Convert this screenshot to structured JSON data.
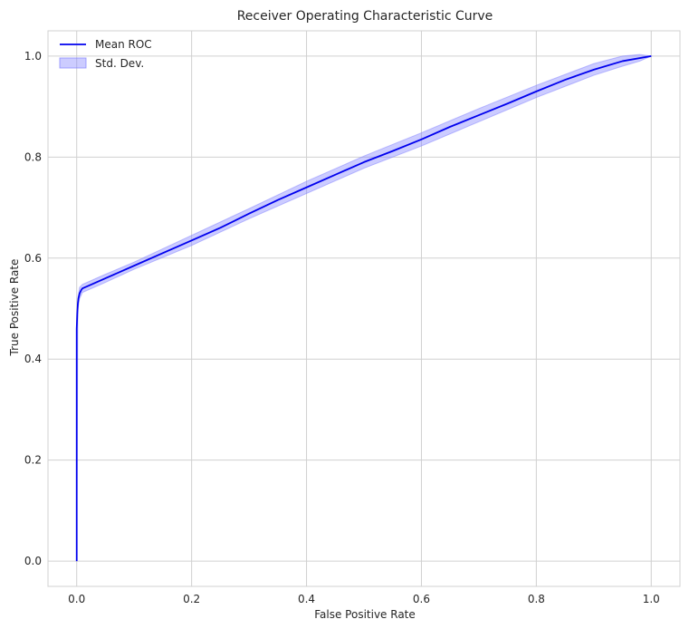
{
  "chart_data": {
    "type": "line",
    "title": "Receiver Operating Characteristic Curve",
    "xlabel": "False Positive Rate",
    "ylabel": "True Positive Rate",
    "xlim": [
      -0.05,
      1.05
    ],
    "ylim": [
      -0.05,
      1.05
    ],
    "xticks": [
      0.0,
      0.2,
      0.4,
      0.6,
      0.8,
      1.0
    ],
    "xtick_labels": [
      "0.0",
      "0.2",
      "0.4",
      "0.6",
      "0.8",
      "1.0"
    ],
    "yticks": [
      0.0,
      0.2,
      0.4,
      0.6,
      0.8,
      1.0
    ],
    "ytick_labels": [
      "0.0",
      "0.2",
      "0.4",
      "0.6",
      "0.8",
      "1.0"
    ],
    "grid": true,
    "legend": {
      "location": "top-left",
      "entries": [
        {
          "label": "Mean ROC",
          "kind": "line"
        },
        {
          "label": "Std. Dev.",
          "kind": "band"
        }
      ]
    },
    "colors": {
      "line": "#0000ee",
      "band_fill": "#8080ff",
      "grid": "#d0d0d0",
      "spine": "#d0d0d0"
    },
    "series": [
      {
        "name": "Mean ROC",
        "x": [
          0.0,
          0.0,
          0.001,
          0.002,
          0.003,
          0.005,
          0.008,
          0.01,
          0.02,
          0.05,
          0.1,
          0.15,
          0.2,
          0.25,
          0.3,
          0.35,
          0.4,
          0.45,
          0.5,
          0.55,
          0.6,
          0.65,
          0.7,
          0.75,
          0.8,
          0.85,
          0.9,
          0.95,
          1.0
        ],
        "y": [
          0.0,
          0.46,
          0.49,
          0.51,
          0.52,
          0.53,
          0.537,
          0.54,
          0.545,
          0.56,
          0.585,
          0.61,
          0.635,
          0.66,
          0.688,
          0.715,
          0.74,
          0.765,
          0.79,
          0.812,
          0.835,
          0.86,
          0.883,
          0.906,
          0.93,
          0.953,
          0.973,
          0.99,
          1.0
        ]
      }
    ],
    "band": {
      "name": "Std. Dev.",
      "x": [
        0.0,
        0.002,
        0.005,
        0.01,
        0.05,
        0.1,
        0.2,
        0.3,
        0.4,
        0.5,
        0.6,
        0.7,
        0.8,
        0.9,
        0.95,
        0.98,
        1.0
      ],
      "lower": [
        0.0,
        0.5,
        0.52,
        0.532,
        0.552,
        0.578,
        0.625,
        0.678,
        0.728,
        0.778,
        0.822,
        0.87,
        0.918,
        0.962,
        0.98,
        0.99,
        1.0
      ],
      "upper": [
        0.0,
        0.52,
        0.542,
        0.548,
        0.568,
        0.592,
        0.645,
        0.698,
        0.752,
        0.802,
        0.848,
        0.896,
        0.942,
        0.985,
        1.0,
        1.003,
        1.0
      ]
    }
  }
}
